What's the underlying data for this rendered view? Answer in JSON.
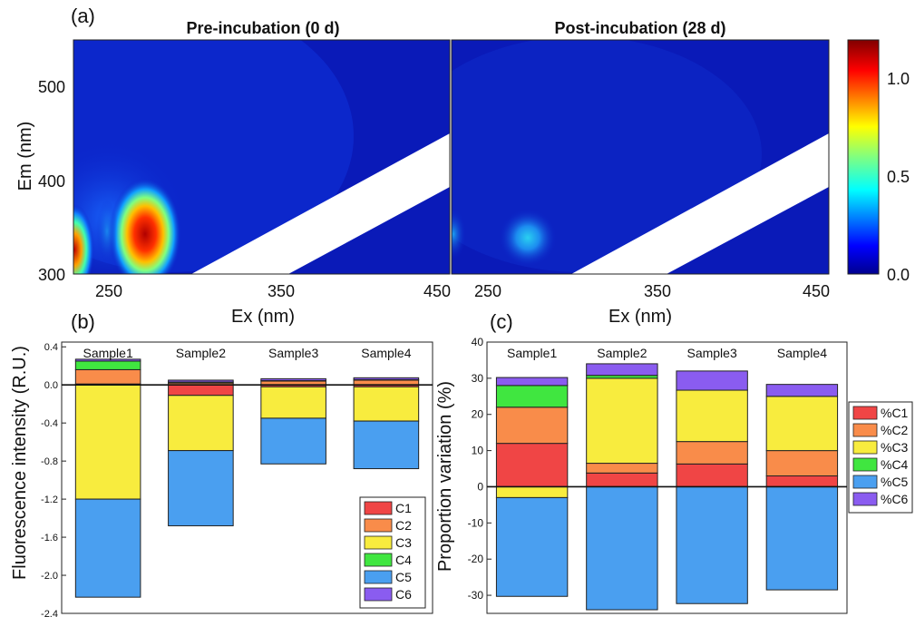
{
  "panel_a": {
    "letter": "(a)",
    "left_title": "Pre-incubation (0 d)",
    "right_title": "Post-incubation (28 d)",
    "xlabel": "Ex (nm)",
    "ylabel": "Em (nm)",
    "x_ticks": [
      "250",
      "350",
      "450"
    ],
    "y_ticks": [
      "300",
      "400",
      "500"
    ],
    "colorbar_ticks": [
      "0.0",
      "0.5",
      "1.0"
    ]
  },
  "panel_b": {
    "letter": "(b)"
  },
  "panel_c": {
    "letter": "(c)"
  },
  "chart_data": [
    {
      "type": "heatmap",
      "title": "Pre-incubation (0 d)",
      "xlabel": "Ex (nm)",
      "ylabel": "Em (nm)",
      "xlim": [
        230,
        450
      ],
      "ylim": [
        300,
        550
      ],
      "zlim": [
        0,
        1.2
      ],
      "colormap": "jet",
      "peaks": [
        {
          "ex": 275,
          "em": 340,
          "intensity": 1.1
        },
        {
          "ex": 232,
          "em": 330,
          "intensity": 1.0
        }
      ]
    },
    {
      "type": "heatmap",
      "title": "Post-incubation (28 d)",
      "xlabel": "Ex (nm)",
      "ylabel": "Em (nm)",
      "xlim": [
        230,
        450
      ],
      "ylim": [
        300,
        550
      ],
      "zlim": [
        0,
        1.2
      ],
      "colormap": "jet",
      "peaks": [
        {
          "ex": 278,
          "em": 340,
          "intensity": 0.35
        }
      ]
    },
    {
      "type": "bar",
      "stacked": true,
      "ylabel": "Fluorescence intensity (R.U.)",
      "ylim": [
        -2.4,
        0.45
      ],
      "yticks": [
        "0.4",
        "0.0",
        "-0.4",
        "-0.8",
        "-1.2",
        "-1.6",
        "-2.0",
        "-2.4"
      ],
      "categories": [
        "Sample1",
        "Sample2",
        "Sample3",
        "Sample4"
      ],
      "legend_position": "bottom-right",
      "series": [
        {
          "name": "C1",
          "color": "#f04545",
          "values": [
            0.01,
            -0.11,
            -0.02,
            -0.02
          ]
        },
        {
          "name": "C2",
          "color": "#f98c4a",
          "values": [
            0.15,
            0.02,
            0.04,
            0.05
          ]
        },
        {
          "name": "C3",
          "color": "#f8ec3e",
          "values": [
            -1.2,
            -0.58,
            -0.33,
            -0.36
          ]
        },
        {
          "name": "C4",
          "color": "#40e640",
          "values": [
            0.09,
            0.01,
            0.005,
            0.005
          ]
        },
        {
          "name": "C5",
          "color": "#4a9ff0",
          "values": [
            -1.03,
            -0.79,
            -0.48,
            -0.5
          ]
        },
        {
          "name": "C6",
          "color": "#8a5cf0",
          "values": [
            0.02,
            0.02,
            0.02,
            0.02
          ]
        }
      ]
    },
    {
      "type": "bar",
      "stacked": true,
      "ylabel": "Proportion variation (%)",
      "ylim": [
        -35,
        40
      ],
      "yticks": [
        "40",
        "30",
        "20",
        "10",
        "0",
        "-10",
        "-20",
        "-30"
      ],
      "categories": [
        "Sample1",
        "Sample2",
        "Sample3",
        "Sample4"
      ],
      "legend_position": "right",
      "series": [
        {
          "name": "%C1",
          "color": "#f04545",
          "values": [
            12,
            3.8,
            6.3,
            3
          ]
        },
        {
          "name": "%C2",
          "color": "#f98c4a",
          "values": [
            10,
            2.7,
            6.2,
            7
          ]
        },
        {
          "name": "%C3",
          "color": "#f8ec3e",
          "values": [
            -3,
            23.5,
            14.2,
            15
          ]
        },
        {
          "name": "%C4",
          "color": "#40e640",
          "values": [
            6,
            0.8,
            0,
            0
          ]
        },
        {
          "name": "%C5",
          "color": "#4a9ff0",
          "values": [
            -27.3,
            -34,
            -32.3,
            -28.5
          ]
        },
        {
          "name": "%C6",
          "color": "#8a5cf0",
          "values": [
            2.2,
            3.2,
            5.3,
            3.3
          ]
        }
      ]
    }
  ]
}
